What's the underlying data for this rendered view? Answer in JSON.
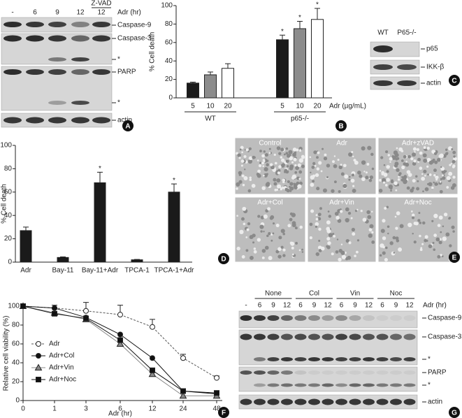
{
  "panel_a": {
    "letter": "A",
    "lanes": [
      "-",
      "6",
      "9",
      "12",
      "12"
    ],
    "lane_group": "Z-VAD",
    "axis_label": "Adr (hr)",
    "bands": [
      "Caspase-9",
      "Caspase-3",
      "*",
      "PARP",
      "*",
      "actin"
    ]
  },
  "panel_c": {
    "letter": "C",
    "lanes": [
      "WT",
      "P65-/-"
    ],
    "bands": [
      "p65",
      "IKK-β",
      "actin"
    ]
  },
  "panel_e": {
    "letter": "E",
    "images": [
      "Control",
      "Adr",
      "Adr+zVAD",
      "Adr+Col",
      "Adr+Vin",
      "Adr+Noc"
    ]
  },
  "panel_g": {
    "letter": "G",
    "groups": [
      "None",
      "Col",
      "Vin",
      "Noc"
    ],
    "lanes": [
      "-",
      "6",
      "9",
      "12",
      "6",
      "9",
      "12",
      "6",
      "9",
      "12",
      "6",
      "9",
      "12"
    ],
    "axis_label": "Adr (hr)",
    "bands": [
      "Caspase-9",
      "Caspase-3",
      "*",
      "PARP",
      "*",
      "actin"
    ]
  },
  "chart_data": [
    {
      "type": "bar",
      "panel_label": "B",
      "ylabel": "% Cell death",
      "xlabel": "Adr (µg/mL)",
      "categories": [
        "5",
        "10",
        "20",
        "5",
        "10",
        "20"
      ],
      "groups": [
        "WT",
        "p65-/-"
      ],
      "values": [
        16,
        25,
        32,
        63,
        75,
        85
      ],
      "errors": [
        1,
        3,
        5,
        5,
        8,
        12
      ],
      "colors": [
        "#1a1a1a",
        "#8c8c8c",
        "#ffffff",
        "#1a1a1a",
        "#8c8c8c",
        "#ffffff"
      ],
      "significant": [
        false,
        false,
        false,
        true,
        true,
        true
      ],
      "significance_label": "*",
      "ylim": [
        0,
        100
      ],
      "yticks": [
        0,
        20,
        40,
        60,
        80,
        100
      ]
    },
    {
      "type": "bar",
      "panel_label": "D",
      "ylabel": "% Cell death",
      "categories": [
        "Adr",
        "Bay-11",
        "Bay-11+Adr",
        "TPCA-1",
        "TPCA-1+Adr"
      ],
      "values": [
        27,
        4,
        68,
        2,
        60
      ],
      "errors": [
        3,
        0.5,
        9,
        0.3,
        7
      ],
      "color": "#1a1a1a",
      "significant": [
        false,
        false,
        true,
        false,
        true
      ],
      "significance_label": "*",
      "ylim": [
        0,
        100
      ],
      "yticks": [
        0,
        20,
        40,
        60,
        80,
        100
      ]
    },
    {
      "type": "line",
      "panel_label": "F",
      "ylabel": "Relative cell viability (%)",
      "xlabel": "Adr (hr)",
      "categories": [
        "0",
        "1",
        "3",
        "6",
        "12",
        "24",
        "48"
      ],
      "legend": "left",
      "series": [
        {
          "name": "Adr",
          "color": "#555555",
          "marker": "open-circle",
          "dashed": true,
          "values": [
            100,
            98,
            95,
            91,
            78,
            45,
            24
          ],
          "errors": [
            0,
            3,
            9,
            10,
            8,
            4,
            2
          ]
        },
        {
          "name": "Adr+Col",
          "color": "#111111",
          "marker": "circle",
          "dashed": false,
          "values": [
            100,
            98,
            88,
            70,
            45,
            10,
            7
          ]
        },
        {
          "name": "Adr+Vin",
          "color": "#888888",
          "marker": "triangle",
          "dashed": false,
          "values": [
            100,
            93,
            86,
            60,
            28,
            5,
            5
          ]
        },
        {
          "name": "Adr+Noc",
          "color": "#111111",
          "marker": "square",
          "dashed": false,
          "values": [
            100,
            92,
            87,
            64,
            32,
            10,
            8
          ]
        }
      ],
      "ylim": [
        0,
        100
      ],
      "yticks": [
        0,
        20,
        40,
        60,
        80,
        100
      ]
    }
  ]
}
